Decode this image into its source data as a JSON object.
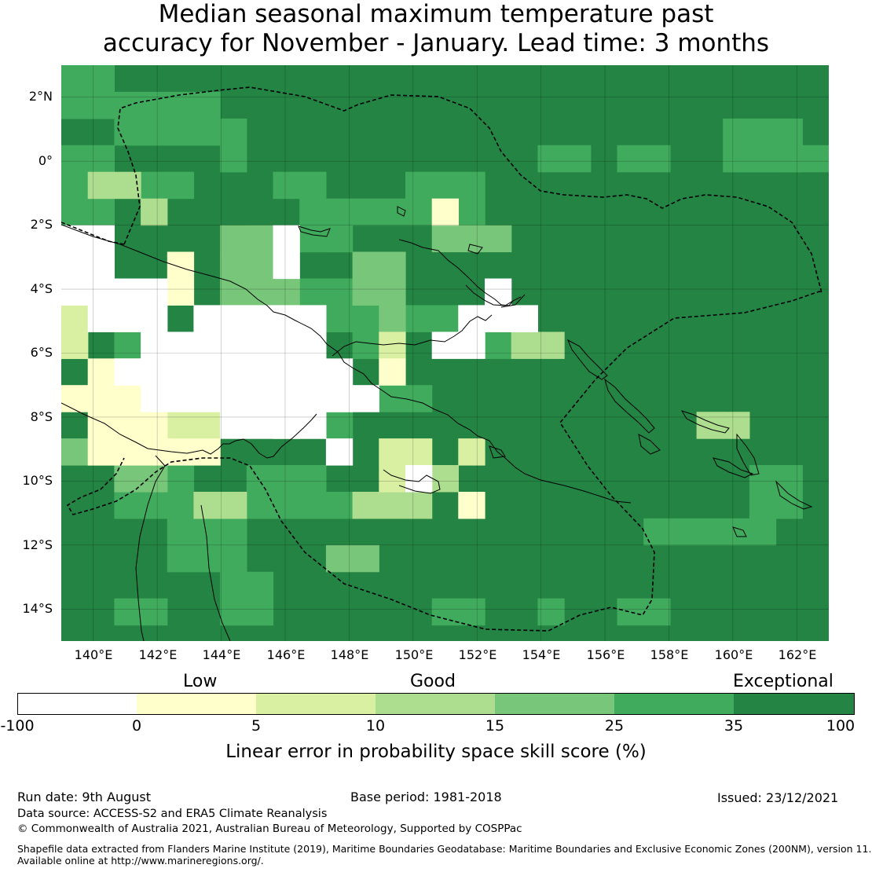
{
  "title": {
    "line1": "Median seasonal maximum temperature past",
    "line2": "accuracy for November - January. Lead time: 3 months"
  },
  "map": {
    "lon_range": [
      139,
      163
    ],
    "lat_range": [
      -15,
      3
    ],
    "lat_labels": [
      "2°N",
      "0°",
      "2°S",
      "4°S",
      "6°S",
      "8°S",
      "10°S",
      "12°S",
      "14°S"
    ],
    "lat_values": [
      2,
      0,
      -2,
      -4,
      -6,
      -8,
      -10,
      -12,
      -14
    ],
    "lon_labels": [
      "140°E",
      "142°E",
      "144°E",
      "146°E",
      "148°E",
      "150°E",
      "152°E",
      "154°E",
      "156°E",
      "158°E",
      "160°E",
      "162°E"
    ],
    "lon_values": [
      140,
      142,
      144,
      146,
      148,
      150,
      152,
      154,
      156,
      158,
      160,
      162
    ]
  },
  "colorbar": {
    "category_labels": [
      "Low",
      "Good",
      "Exceptional"
    ],
    "ticks": [
      "-100",
      "0",
      "5",
      "10",
      "15",
      "25",
      "35",
      "100"
    ],
    "colors": [
      "#ffffff",
      "#ffffcc",
      "#d9f0a3",
      "#addd8e",
      "#78c679",
      "#41ab5d",
      "#238443"
    ],
    "label": "Linear error in probability space skill score (%)"
  },
  "footer": {
    "run_date": "Run date: 9th August",
    "base_period": "Base period: 1981-2018",
    "issued": "Issued: 23/12/2021",
    "data_source": "Data source: ACCESS-S2 and ERA5 Climate Reanalysis",
    "copyright": "© Commonwealth of Australia 2021, Australian Bureau of Meteorology, Supported by COSPPac",
    "shapefile1": "Shapefile data extracted from Flanders Marine Institute (2019), Maritime Boundaries Geodatabase: Maritime Boundaries and Exclusive Economic Zones (200NM), version 11.",
    "shapefile2": "Available online at http://www.marineregions.org/."
  }
}
